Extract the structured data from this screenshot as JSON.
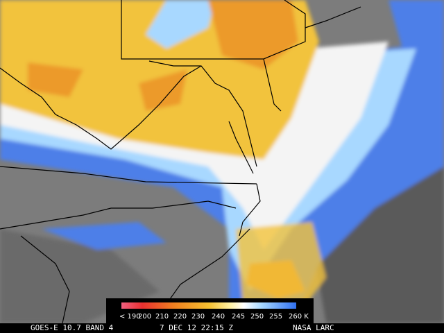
{
  "colorbar": {
    "labels": [
      "< 190",
      "200",
      "210",
      "220",
      "230",
      "240",
      "245",
      "250",
      "255",
      "260 K"
    ]
  },
  "footer": {
    "satellite": "GOES-E 10.7 BAND 4",
    "time": "7 DEC 12 22:15 Z",
    "source": "NASA LARC"
  }
}
